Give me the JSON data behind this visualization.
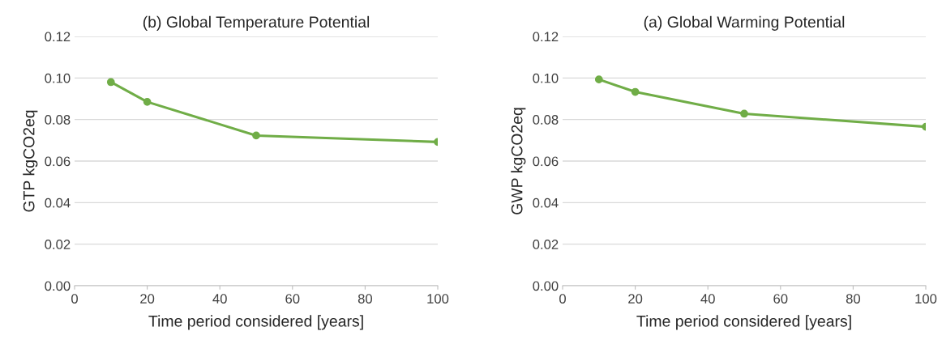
{
  "chart_data": [
    {
      "type": "line",
      "title": "(b) Global Temperature Potential",
      "xlabel": "Time period considered [years]",
      "ylabel": "GTP kgCO2eq",
      "x": [
        10,
        20,
        50,
        100
      ],
      "series": [
        {
          "color": "#70ad47",
          "values": [
            0.098,
            0.0885,
            0.0723,
            0.0692
          ]
        }
      ],
      "xlim": [
        0,
        100
      ],
      "xticks": [
        0,
        20,
        40,
        60,
        80,
        100
      ],
      "ylim": [
        0,
        0.12
      ],
      "yticks": [
        {
          "value": 0,
          "label": "0.00"
        },
        {
          "value": 0.02,
          "label": "0.02"
        },
        {
          "value": 0.04,
          "label": "0.04"
        },
        {
          "value": 0.06,
          "label": "0.06"
        },
        {
          "value": 0.08,
          "label": "0.08"
        },
        {
          "value": 0.1,
          "label": "0.10"
        },
        {
          "value": 0.12,
          "label": "0.12"
        }
      ],
      "grid": "y",
      "marker": "circle",
      "line_style": "solid"
    },
    {
      "type": "line",
      "title": "(a) Global Warming Potential",
      "xlabel": "Time period considered [years]",
      "ylabel": "GWP kgCO2eq",
      "x": [
        10,
        20,
        50,
        100
      ],
      "series": [
        {
          "color": "#70ad47",
          "values": [
            0.0993,
            0.0933,
            0.0828,
            0.0765
          ]
        }
      ],
      "xlim": [
        0,
        100
      ],
      "xticks": [
        0,
        20,
        40,
        60,
        80,
        100
      ],
      "ylim": [
        0,
        0.12
      ],
      "yticks": [
        {
          "value": 0,
          "label": "0.00"
        },
        {
          "value": 0.02,
          "label": "0.02"
        },
        {
          "value": 0.04,
          "label": "0.04"
        },
        {
          "value": 0.06,
          "label": "0.06"
        },
        {
          "value": 0.08,
          "label": "0.08"
        },
        {
          "value": 0.1,
          "label": "0.10"
        },
        {
          "value": 0.12,
          "label": "0.12"
        }
      ],
      "grid": "y",
      "marker": "circle",
      "line_style": "solid"
    }
  ]
}
